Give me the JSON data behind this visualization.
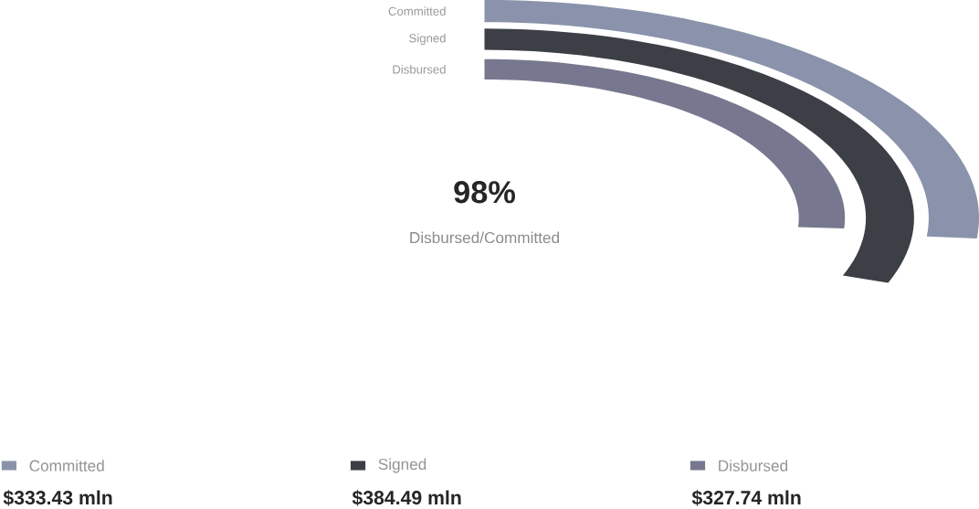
{
  "chart_data": {
    "type": "bar",
    "categories": [
      "Committed",
      "Signed",
      "Disbursed"
    ],
    "values": [
      333.43,
      384.49,
      327.74
    ],
    "colors": [
      "#8a93ab",
      "#3c3f45",
      "#77788f"
    ],
    "value_labels": [
      "$333.43 mln",
      "$384.49 mln",
      "$327.74 mln"
    ],
    "annotations": [
      "98%",
      "Disbursed/Committed"
    ]
  }
}
